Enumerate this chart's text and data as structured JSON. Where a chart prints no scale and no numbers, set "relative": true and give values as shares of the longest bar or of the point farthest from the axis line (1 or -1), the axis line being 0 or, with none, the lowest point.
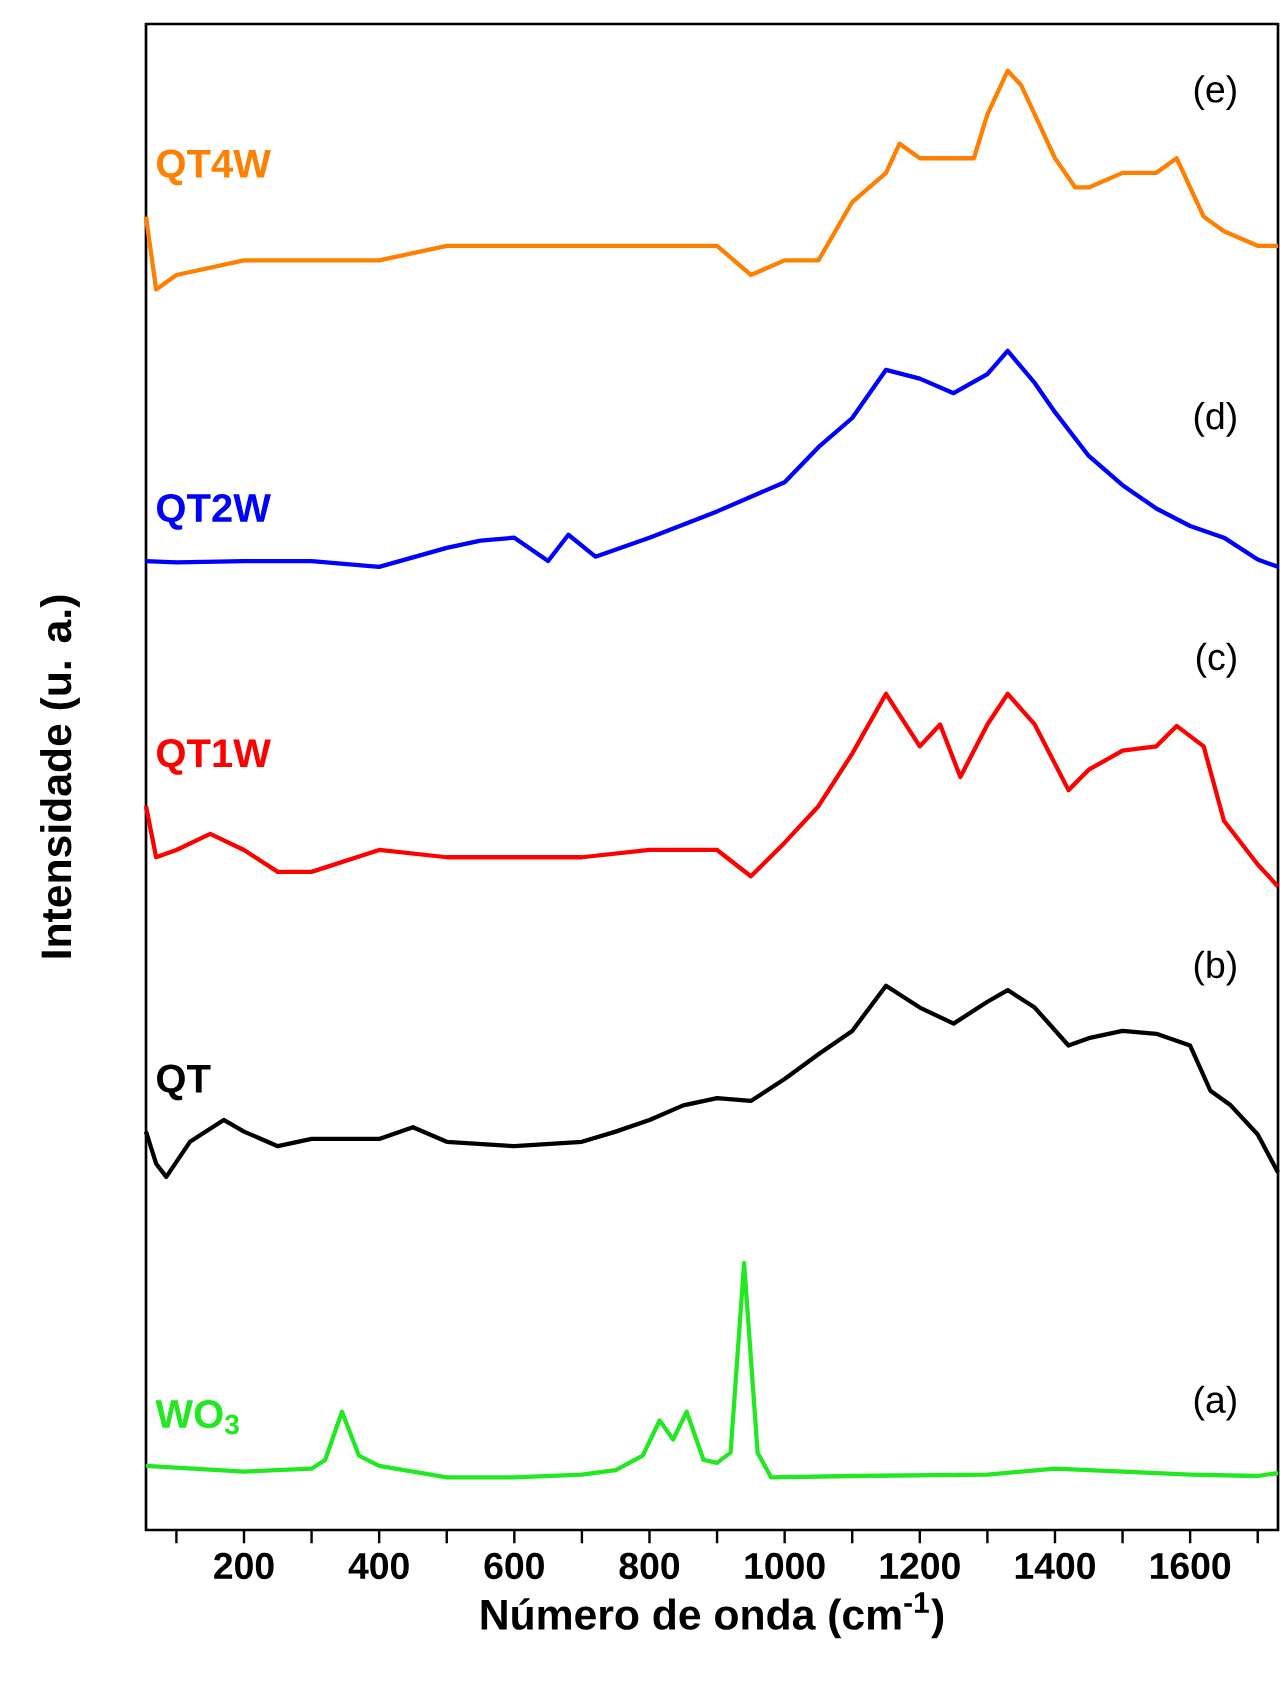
{
  "chart_data": {
    "type": "line",
    "relative": true,
    "xlabel": "Número de onda (cm$^{-1}$)",
    "ylabel": "Intensidade (u. a.)",
    "xlim": [
      55,
      1730
    ],
    "xticks": [
      {
        "value": 100,
        "label": null
      },
      200,
      {
        "value": 300,
        "label": null
      },
      400,
      {
        "value": 500,
        "label": null
      },
      600,
      {
        "value": 700,
        "label": null
      },
      800,
      {
        "value": 900,
        "label": null
      },
      1000,
      {
        "value": 1100,
        "label": null
      },
      1200,
      {
        "value": 1300,
        "label": null
      },
      1400,
      {
        "value": 1500,
        "label": null
      },
      1600,
      {
        "value": 1700,
        "label": null
      }
    ],
    "series": [
      {
        "name": "QT4W",
        "color": "#ff7f00",
        "x": [
          55,
          70,
          100,
          200,
          300,
          400,
          500,
          600,
          700,
          800,
          900,
          950,
          1000,
          1050,
          1100,
          1150,
          1170,
          1200,
          1250,
          1280,
          1300,
          1320,
          1330,
          1350,
          1370,
          1400,
          1430,
          1450,
          1500,
          1550,
          1580,
          1620,
          1650,
          1700,
          1730
        ],
        "values": [
          0.9,
          0.85,
          0.86,
          0.87,
          0.87,
          0.87,
          0.88,
          0.88,
          0.88,
          0.88,
          0.88,
          0.86,
          0.87,
          0.87,
          0.91,
          0.93,
          0.95,
          0.94,
          0.94,
          0.94,
          0.97,
          0.99,
          1.0,
          0.99,
          0.97,
          0.94,
          0.92,
          0.92,
          0.93,
          0.93,
          0.94,
          0.9,
          0.89,
          0.88,
          0.88
        ]
      },
      {
        "name": "QT2W",
        "color": "#0000ff",
        "x": [
          55,
          100,
          200,
          300,
          400,
          500,
          550,
          600,
          650,
          680,
          720,
          800,
          900,
          1000,
          1050,
          1100,
          1150,
          1200,
          1250,
          1300,
          1330,
          1370,
          1400,
          1450,
          1500,
          1550,
          1600,
          1650,
          1700,
          1730
        ],
        "values": [
          0.664,
          0.663,
          0.664,
          0.664,
          0.66,
          0.673,
          0.678,
          0.68,
          0.664,
          0.682,
          0.667,
          0.68,
          0.698,
          0.718,
          0.742,
          0.762,
          0.795,
          0.789,
          0.779,
          0.792,
          0.808,
          0.786,
          0.766,
          0.736,
          0.716,
          0.7,
          0.688,
          0.68,
          0.665,
          0.66
        ]
      },
      {
        "name": "QT1W",
        "color": "#ff0000",
        "x": [
          55,
          70,
          100,
          150,
          200,
          250,
          300,
          400,
          500,
          600,
          700,
          800,
          900,
          950,
          1000,
          1050,
          1100,
          1150,
          1200,
          1230,
          1260,
          1300,
          1330,
          1370,
          1420,
          1450,
          1500,
          1550,
          1580,
          1620,
          1650,
          1700,
          1730
        ],
        "values": [
          0.496,
          0.461,
          0.466,
          0.477,
          0.466,
          0.451,
          0.451,
          0.466,
          0.461,
          0.461,
          0.461,
          0.466,
          0.466,
          0.448,
          0.471,
          0.496,
          0.532,
          0.573,
          0.537,
          0.552,
          0.516,
          0.552,
          0.573,
          0.552,
          0.507,
          0.521,
          0.534,
          0.537,
          0.551,
          0.537,
          0.486,
          0.456,
          0.441
        ]
      },
      {
        "name": "QT",
        "color": "#000000",
        "x": [
          55,
          70,
          85,
          120,
          170,
          200,
          250,
          300,
          400,
          450,
          500,
          600,
          700,
          750,
          800,
          850,
          900,
          950,
          1000,
          1050,
          1100,
          1150,
          1200,
          1250,
          1300,
          1330,
          1370,
          1420,
          1450,
          1500,
          1550,
          1600,
          1630,
          1660,
          1700,
          1730
        ],
        "values": [
          0.273,
          0.251,
          0.242,
          0.266,
          0.281,
          0.273,
          0.263,
          0.268,
          0.268,
          0.276,
          0.266,
          0.263,
          0.266,
          0.273,
          0.281,
          0.291,
          0.296,
          0.294,
          0.309,
          0.326,
          0.342,
          0.373,
          0.358,
          0.347,
          0.362,
          0.37,
          0.358,
          0.332,
          0.337,
          0.342,
          0.34,
          0.332,
          0.301,
          0.291,
          0.271,
          0.245
        ]
      },
      {
        "name": "WO$_{3}$",
        "color": "#22e822",
        "x": [
          55,
          200,
          300,
          320,
          345,
          370,
          400,
          500,
          600,
          700,
          750,
          790,
          815,
          835,
          855,
          880,
          900,
          920,
          940,
          960,
          980,
          1100,
          1300,
          1400,
          1600,
          1700,
          1730
        ],
        "values": [
          0.044,
          0.04,
          0.042,
          0.048,
          0.081,
          0.051,
          0.044,
          0.036,
          0.036,
          0.038,
          0.041,
          0.051,
          0.075,
          0.062,
          0.081,
          0.048,
          0.046,
          0.053,
          0.183,
          0.053,
          0.036,
          0.037,
          0.038,
          0.042,
          0.038,
          0.037,
          0.039
        ]
      }
    ],
    "annotations": [
      "(e)",
      "(d)",
      "(c)",
      "(b)",
      "(a)"
    ]
  }
}
